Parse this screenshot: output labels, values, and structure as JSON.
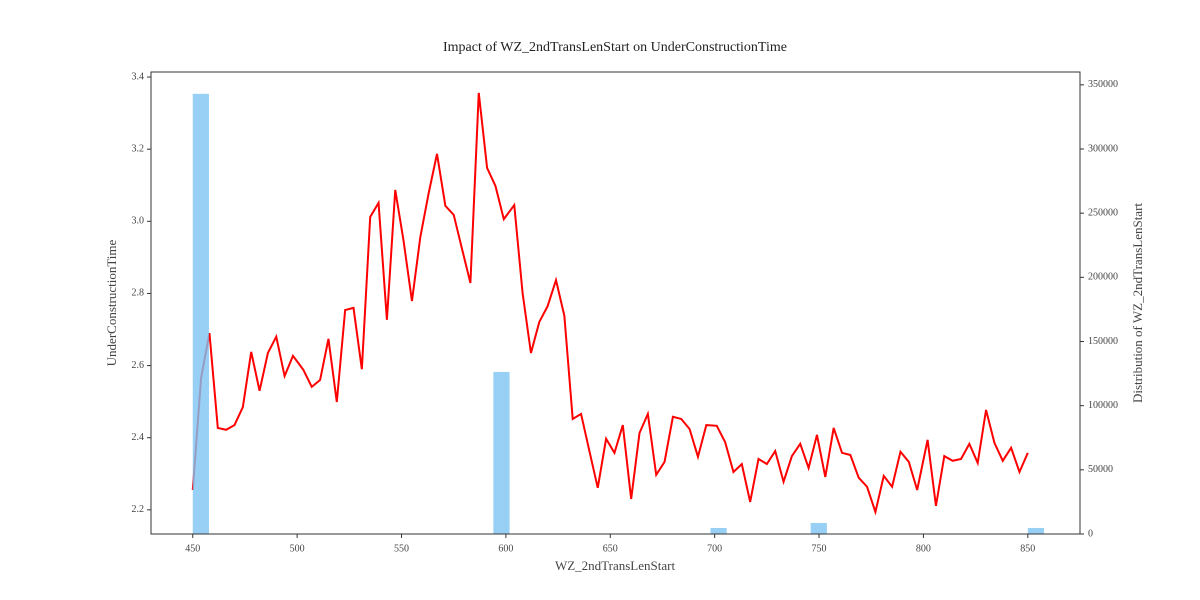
{
  "chart_data": {
    "type": "line",
    "title": "Impact of WZ_2ndTransLenStart on UnderConstructionTime",
    "xlabel": "WZ_2ndTransLenStart",
    "ylabel": "UnderConstructionTime",
    "y2label": "Distribution of WZ_2ndTransLenStart",
    "x": [
      450,
      454,
      458,
      462,
      466,
      470,
      474,
      478,
      482,
      486,
      490,
      494,
      498,
      503,
      507,
      511,
      515,
      519,
      523,
      527,
      531,
      535,
      539,
      543,
      547,
      551,
      555,
      559,
      563,
      567,
      571,
      575,
      579,
      583,
      587,
      591,
      595,
      599,
      604,
      608,
      612,
      616,
      620,
      624,
      628,
      632,
      636,
      640,
      644,
      648,
      652,
      656,
      660,
      664,
      668,
      672,
      676,
      680,
      684,
      688,
      692,
      696,
      701,
      705,
      709,
      713,
      717,
      721,
      725,
      729,
      733,
      737,
      741,
      745,
      749,
      753,
      757,
      761,
      765,
      769,
      773,
      777,
      781,
      785,
      789,
      793,
      797,
      802,
      806,
      810,
      814,
      818,
      822,
      826,
      830,
      834,
      838,
      842,
      846,
      850
    ],
    "values": [
      2.255,
      2.566,
      2.69,
      2.427,
      2.422,
      2.435,
      2.485,
      2.638,
      2.53,
      2.635,
      2.68,
      2.571,
      2.627,
      2.588,
      2.541,
      2.56,
      2.674,
      2.499,
      2.754,
      2.76,
      2.59,
      3.012,
      3.051,
      2.727,
      3.087,
      2.945,
      2.779,
      2.956,
      3.078,
      3.187,
      3.043,
      3.018,
      2.923,
      2.829,
      3.356,
      3.148,
      3.098,
      3.006,
      3.045,
      2.801,
      2.635,
      2.721,
      2.765,
      2.837,
      2.738,
      2.452,
      2.466,
      2.363,
      2.261,
      2.397,
      2.358,
      2.435,
      2.23,
      2.413,
      2.466,
      2.297,
      2.333,
      2.458,
      2.452,
      2.424,
      2.347,
      2.435,
      2.433,
      2.388,
      2.305,
      2.327,
      2.222,
      2.341,
      2.327,
      2.363,
      2.278,
      2.349,
      2.383,
      2.316,
      2.408,
      2.291,
      2.427,
      2.358,
      2.352,
      2.289,
      2.264,
      2.194,
      2.294,
      2.264,
      2.361,
      2.333,
      2.255,
      2.394,
      2.211,
      2.349,
      2.336,
      2.341,
      2.383,
      2.33,
      2.477,
      2.386,
      2.336,
      2.372,
      2.305,
      2.358
    ],
    "color": "#ff0000",
    "histogram": {
      "axis": "y2",
      "color": "#7dc3f3",
      "bins": [
        450,
        458,
        466,
        474,
        482,
        490,
        498,
        506,
        514,
        522,
        530,
        538,
        546,
        554,
        562,
        570,
        578,
        586,
        594,
        602,
        610,
        618,
        626,
        634,
        642,
        650,
        658,
        666,
        674,
        682,
        690,
        698,
        706,
        714,
        722,
        730,
        738,
        746,
        754,
        762,
        770,
        778,
        786,
        794,
        802,
        810,
        818,
        826,
        834,
        842,
        850,
        858
      ],
      "counts": [
        343000,
        0,
        0,
        0,
        0,
        0,
        0,
        0,
        0,
        0,
        0,
        0,
        0,
        0,
        0,
        0,
        0,
        0,
        126300,
        0,
        0,
        0,
        0,
        0,
        0,
        0,
        0,
        0,
        0,
        0,
        0,
        4700,
        0,
        0,
        0,
        0,
        0,
        8600,
        0,
        0,
        0,
        0,
        0,
        0,
        0,
        0,
        0,
        0,
        0,
        0,
        4700
      ]
    },
    "xlim": [
      430,
      875
    ],
    "xticks": [
      450,
      500,
      550,
      600,
      650,
      700,
      750,
      800,
      850
    ],
    "ylim": [
      2.133,
      3.414
    ],
    "yticks": [
      2.2,
      2.4,
      2.6,
      2.8,
      {
        "value": 3,
        "label": "3.0"
      },
      3.2,
      3.4
    ],
    "y2lim": [
      0,
      360000
    ],
    "y2ticks": [
      0,
      50000,
      100000,
      150000,
      200000,
      250000,
      300000,
      350000
    ]
  }
}
